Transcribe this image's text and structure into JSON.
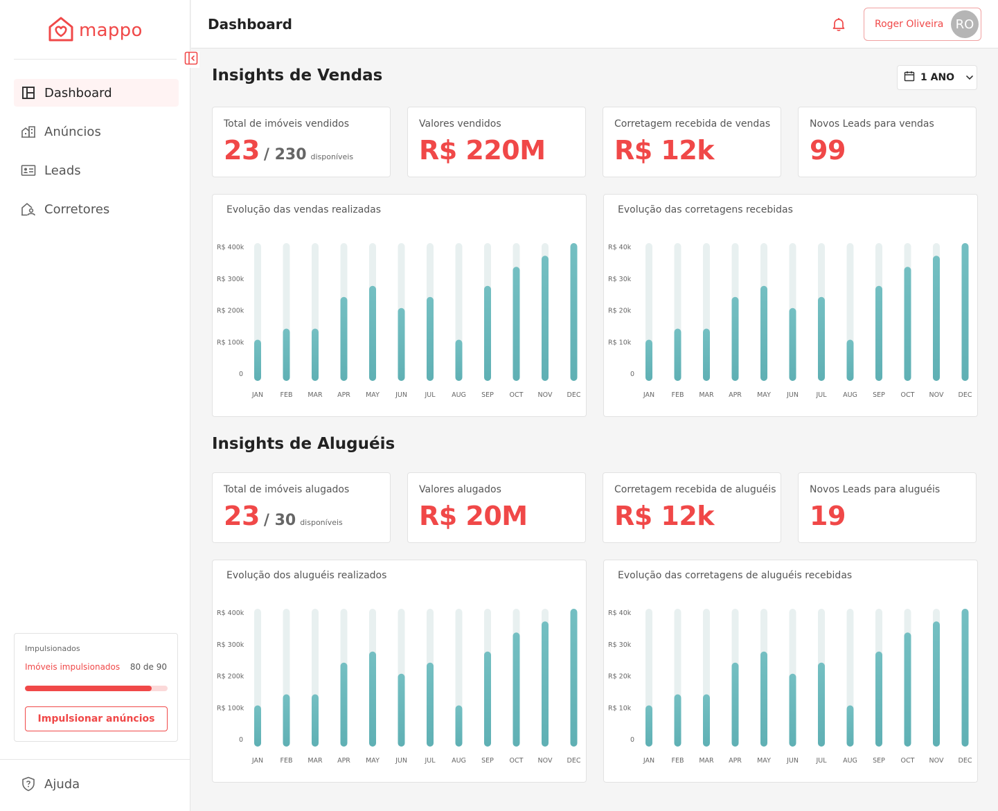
{
  "brand": {
    "name": "mappo",
    "color": "#f04848"
  },
  "header": {
    "title": "Dashboard",
    "user_name": "Roger Oliveira",
    "user_initials": "RO"
  },
  "nav": [
    {
      "label": "Dashboard",
      "icon": "dashboard-icon",
      "active": true
    },
    {
      "label": "Anúncios",
      "icon": "buildings-icon",
      "active": false
    },
    {
      "label": "Leads",
      "icon": "id-card-icon",
      "active": false
    },
    {
      "label": "Corretores",
      "icon": "house-user-icon",
      "active": false
    }
  ],
  "boost": {
    "title": "Impulsionados",
    "label": "Imóveis impulsionados",
    "count": "80 de 90",
    "progress": 0.889,
    "button": "Impulsionar anúncios"
  },
  "help": {
    "label": "Ajuda"
  },
  "period": {
    "label": "1 ANO"
  },
  "sales": {
    "title": "Insights de Vendas",
    "stats": [
      {
        "label": "Total de imóveis vendidos",
        "value": "23",
        "sub": "/ 230",
        "small": "disponíveis"
      },
      {
        "label": "Valores vendidos",
        "value": "R$ 220M"
      },
      {
        "label": "Corretagem recebida de vendas",
        "value": "R$ 12k"
      },
      {
        "label": "Novos Leads para vendas",
        "value": "99"
      }
    ]
  },
  "rentals": {
    "title": "Insights de Aluguéis",
    "stats": [
      {
        "label": "Total de imóveis alugados",
        "value": "23",
        "sub": "/ 30",
        "small": "disponíveis"
      },
      {
        "label": "Valores alugados",
        "value": "R$ 20M"
      },
      {
        "label": "Corretagem recebida de aluguéis",
        "value": "R$ 12k"
      },
      {
        "label": "Novos Leads para aluguéis",
        "value": "19"
      }
    ]
  },
  "chart_data": [
    {
      "type": "bar",
      "title": "Evolução das vendas realizadas",
      "categories": [
        "JAN",
        "FEB",
        "MAR",
        "APR",
        "MAY",
        "JUN",
        "JUL",
        "AUG",
        "SEP",
        "OCT",
        "NOV",
        "DEC"
      ],
      "values": [
        130000,
        165000,
        165000,
        265000,
        300000,
        230000,
        265000,
        130000,
        300000,
        360000,
        395000,
        435000
      ],
      "ylim": [
        0,
        435000
      ],
      "yticks": [
        0,
        100000,
        200000,
        300000,
        400000
      ],
      "ytick_labels": [
        "0",
        "R$ 100k",
        "R$ 200k",
        "R$ 300k",
        "R$ 400k"
      ],
      "bar_color": "#5fb0b4",
      "track_color": "#e8f0f0"
    },
    {
      "type": "bar",
      "title": "Evolução das corretagens recebidas",
      "categories": [
        "JAN",
        "FEB",
        "MAR",
        "APR",
        "MAY",
        "JUN",
        "JUL",
        "AUG",
        "SEP",
        "OCT",
        "NOV",
        "DEC"
      ],
      "values": [
        13000,
        16500,
        16500,
        26500,
        30000,
        23000,
        26500,
        13000,
        30000,
        36000,
        39500,
        43500
      ],
      "ylim": [
        0,
        43500
      ],
      "yticks": [
        0,
        10000,
        20000,
        30000,
        40000
      ],
      "ytick_labels": [
        "0",
        "R$ 10k",
        "R$ 20k",
        "R$ 30k",
        "R$ 40k"
      ],
      "bar_color": "#5fb0b4",
      "track_color": "#e8f0f0"
    },
    {
      "type": "bar",
      "title": "Evolução dos aluguéis realizados",
      "categories": [
        "JAN",
        "FEB",
        "MAR",
        "APR",
        "MAY",
        "JUN",
        "JUL",
        "AUG",
        "SEP",
        "OCT",
        "NOV",
        "DEC"
      ],
      "values": [
        130000,
        165000,
        165000,
        265000,
        300000,
        230000,
        265000,
        130000,
        300000,
        360000,
        395000,
        435000
      ],
      "ylim": [
        0,
        435000
      ],
      "yticks": [
        0,
        100000,
        200000,
        300000,
        400000
      ],
      "ytick_labels": [
        "0",
        "R$ 100k",
        "R$ 200k",
        "R$ 300k",
        "R$ 400k"
      ],
      "bar_color": "#5fb0b4",
      "track_color": "#e8f0f0"
    },
    {
      "type": "bar",
      "title": "Evolução das corretagens de aluguéis recebidas",
      "categories": [
        "JAN",
        "FEB",
        "MAR",
        "APR",
        "MAY",
        "JUN",
        "JUL",
        "AUG",
        "SEP",
        "OCT",
        "NOV",
        "DEC"
      ],
      "values": [
        13000,
        16500,
        16500,
        26500,
        30000,
        23000,
        26500,
        13000,
        30000,
        36000,
        39500,
        43500
      ],
      "ylim": [
        0,
        43500
      ],
      "yticks": [
        0,
        10000,
        20000,
        30000,
        40000
      ],
      "ytick_labels": [
        "0",
        "R$ 10k",
        "R$ 20k",
        "R$ 30k",
        "R$ 40k"
      ],
      "bar_color": "#5fb0b4",
      "track_color": "#e8f0f0"
    }
  ]
}
